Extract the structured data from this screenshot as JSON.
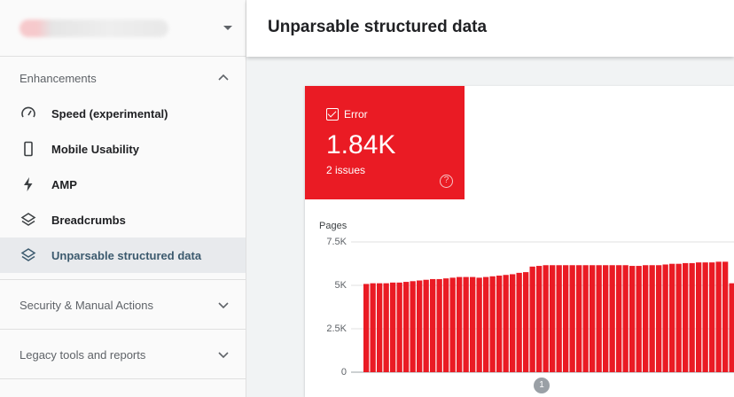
{
  "sidebar": {
    "section_enhancements": "Enhancements",
    "items": [
      {
        "label": "Speed (experimental)",
        "icon": "speedometer-icon"
      },
      {
        "label": "Mobile Usability",
        "icon": "phone-icon"
      },
      {
        "label": "AMP",
        "icon": "lightning-icon"
      },
      {
        "label": "Breadcrumbs",
        "icon": "layers-icon"
      },
      {
        "label": "Unparsable structured data",
        "icon": "layers-icon",
        "active": true
      }
    ],
    "section_security": "Security & Manual Actions",
    "section_legacy": "Legacy tools and reports"
  },
  "header": {
    "title": "Unparsable structured data"
  },
  "summary": {
    "status_label": "Error",
    "value": "1.84K",
    "issues": "2 issues",
    "help_glyph": "?"
  },
  "colors": {
    "error": "#ea1b24",
    "active_text": "#3c5a6e"
  },
  "chart_data": {
    "type": "bar",
    "ylabel": "Pages",
    "ylim": [
      0,
      7500
    ],
    "yticks": [
      "7.5K",
      "5K",
      "2.5K",
      "0"
    ],
    "yticks_values": [
      7500,
      5000,
      2500,
      0
    ],
    "values": [
      5080,
      5120,
      5120,
      5120,
      5160,
      5160,
      5200,
      5240,
      5280,
      5320,
      5360,
      5360,
      5400,
      5440,
      5480,
      5480,
      5480,
      5440,
      5480,
      5520,
      5560,
      5600,
      5640,
      5720,
      5760,
      6080,
      6120,
      6160,
      6160,
      6160,
      6160,
      6160,
      6160,
      6160,
      6160,
      6160,
      6160,
      6160,
      6160,
      6160,
      6120,
      6120,
      6160,
      6160,
      6160,
      6200,
      6240,
      6240,
      6280,
      6280,
      6320,
      6320,
      6320,
      6360,
      6360,
      5120
    ],
    "annotation": "1",
    "annotation_index": 25
  }
}
